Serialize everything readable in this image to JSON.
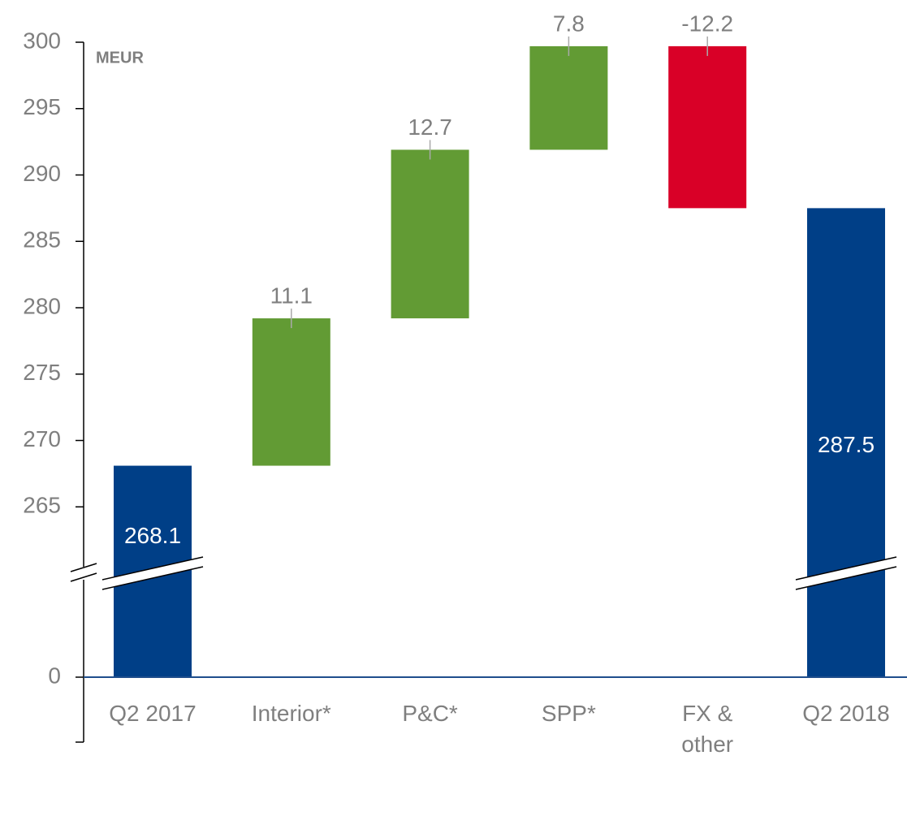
{
  "chart_data": {
    "type": "waterfall",
    "unit_label": "MEUR",
    "categories": [
      "Q2 2017",
      "Interior*",
      "P&C*",
      "SPP*",
      "FX &\nother",
      "Q2 2018"
    ],
    "values": [
      268.1,
      11.1,
      12.7,
      7.8,
      -12.2,
      287.5
    ],
    "kinds": [
      "total",
      "delta",
      "delta",
      "delta",
      "delta",
      "total"
    ],
    "colors": {
      "total": "#003f87",
      "increase": "#629b34",
      "decrease": "#d90027"
    },
    "ylim": [
      -5,
      300
    ],
    "ybreak": [
      8,
      260
    ],
    "yticks": [
      0,
      265,
      270,
      275,
      280,
      285,
      290,
      295,
      300
    ]
  }
}
